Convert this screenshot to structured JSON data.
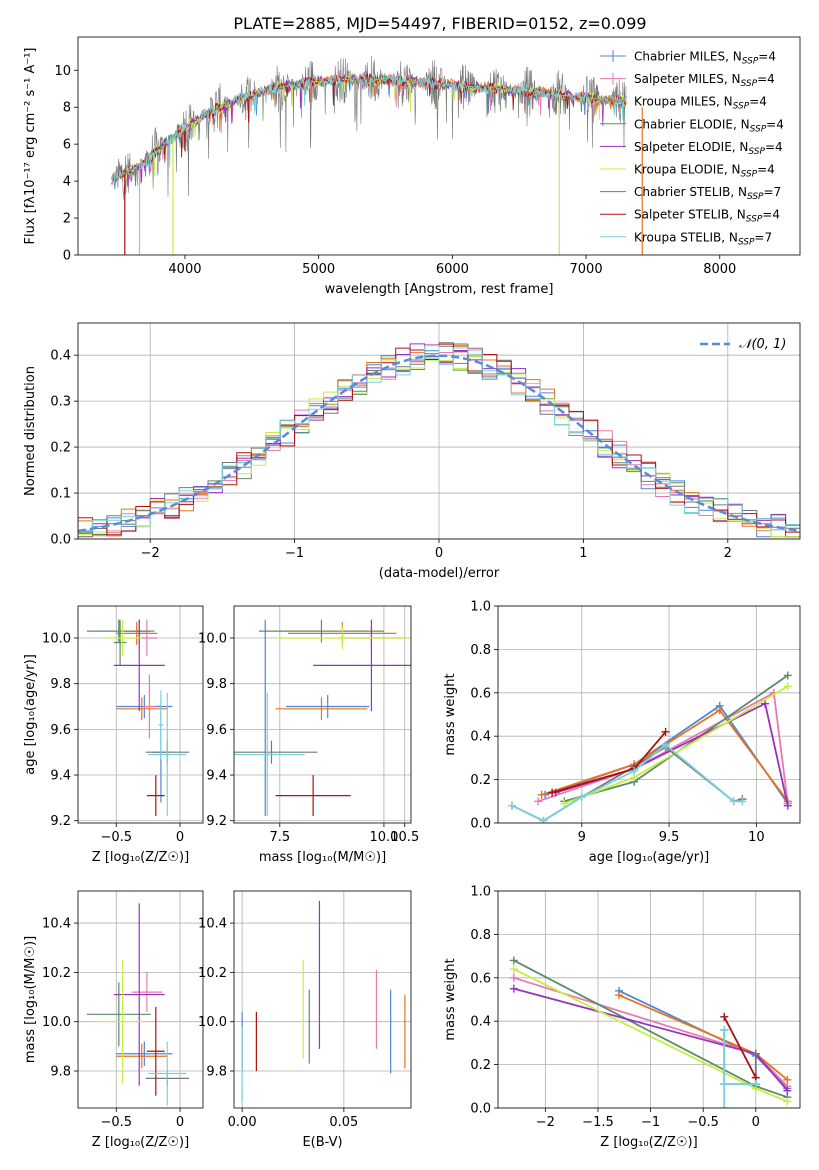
{
  "figure_title": "PLATE=2885, MJD=54497, FIBERID=0152, z=0.099",
  "colors": {
    "Chabrier MILES": "#4f86d9",
    "Salpeter MILES": "#e87ab0",
    "Kroupa MILES": "#e8731e",
    "Chabrier ELODIE": "#5b8b6a",
    "Salpeter ELODIE": "#9b2fc0",
    "Kroupa ELODIE": "#c7ee40",
    "Chabrier STELIB": "#777777",
    "Salpeter STELIB": "#b01010",
    "Kroupa STELIB": "#76d3de"
  },
  "chart_data": [
    {
      "type": "line",
      "name": "spectrum",
      "title": "PLATE=2885, MJD=54497, FIBERID=0152, z=0.099",
      "xlabel": "wavelength [Angstrom, rest frame]",
      "ylabel": "Flux [fλ10⁻¹⁷ erg cm⁻² s⁻¹ A⁻¹]",
      "xlim": [
        3200,
        8600
      ],
      "ylim": [
        0,
        11.8
      ],
      "xticks": [
        4000,
        5000,
        6000,
        7000,
        8000
      ],
      "yticks": [
        0,
        2,
        4,
        6,
        8,
        10
      ],
      "grid": false,
      "legend_position": "upper-right",
      "legend": [
        "Chabrier MILES, N_SSP=4",
        "Salpeter MILES, N_SSP=4",
        "Kroupa MILES, N_SSP=4",
        "Chabrier ELODIE, N_SSP=4",
        "Salpeter ELODIE, N_SSP=4",
        "Kroupa ELODIE, N_SSP=4",
        "Chabrier STELIB, N_SSP=7",
        "Salpeter STELIB, N_SSP=4",
        "Kroupa STELIB, N_SSP=7"
      ],
      "continuum": [
        [
          3450,
          4.1
        ],
        [
          3550,
          4.4
        ],
        [
          3700,
          5.0
        ],
        [
          3850,
          6.0
        ],
        [
          4000,
          6.9
        ],
        [
          4200,
          7.8
        ],
        [
          4400,
          8.4
        ],
        [
          4600,
          8.9
        ],
        [
          4800,
          9.2
        ],
        [
          5000,
          9.4
        ],
        [
          5200,
          9.5
        ],
        [
          5500,
          9.5
        ],
        [
          6000,
          9.2
        ],
        [
          6500,
          8.9
        ],
        [
          7000,
          8.5
        ],
        [
          7300,
          8.3
        ]
      ],
      "drops": [
        3550,
        3660,
        3910,
        6800,
        7420
      ]
    },
    {
      "type": "histogram",
      "name": "residuals",
      "xlabel": "(data-model)/error",
      "ylabel": "Normed distribution",
      "xlim": [
        -2.5,
        2.5
      ],
      "ylim": [
        0,
        0.47
      ],
      "xticks": [
        -2,
        -1,
        0,
        1,
        2
      ],
      "yticks": [
        0.0,
        0.1,
        0.2,
        0.3,
        0.4
      ],
      "grid": true,
      "legend_position": "upper-right",
      "legend": [
        "𝒩(0, 1)"
      ],
      "bin_width": 0.1,
      "reference_curve": "normal(0,1)"
    },
    {
      "type": "scatter",
      "name": "age-vs-Z",
      "xlabel": "Z [log₁₀(Z/Z☉)]",
      "ylabel": "age  [log₁₀(age/yr)]",
      "xlim": [
        -0.8,
        0.18
      ],
      "ylim": [
        9.19,
        10.14
      ],
      "xticks": [
        -0.5,
        0.0
      ],
      "yticks": [
        9.2,
        9.4,
        9.6,
        9.8,
        10.0
      ],
      "grid": true,
      "errorbars": [
        {
          "model": "Chabrier MILES",
          "x": -0.32,
          "xerr": 0.12,
          "y": 10.03,
          "yerr": 0.05
        },
        {
          "model": "Chabrier MILES",
          "x": -0.28,
          "xerr": 0.22,
          "y": 9.7,
          "yerr": 0.05
        },
        {
          "model": "Chabrier MILES",
          "x": -0.15,
          "xerr": 0.07,
          "y": 9.5,
          "yerr": 0.22
        },
        {
          "model": "Salpeter MILES",
          "x": -0.26,
          "xerr": 0.08,
          "y": 10.0,
          "yerr": 0.08
        },
        {
          "model": "Salpeter MILES",
          "x": -0.24,
          "xerr": 0.05,
          "y": 9.7,
          "yerr": 0.14
        },
        {
          "model": "Kroupa MILES",
          "x": -0.34,
          "xerr": 0.16,
          "y": 10.02,
          "yerr": 0.05
        },
        {
          "model": "Kroupa MILES",
          "x": -0.3,
          "xerr": 0.2,
          "y": 9.69,
          "yerr": 0.05
        },
        {
          "model": "Chabrier ELODIE",
          "x": -0.48,
          "xerr": 0.25,
          "y": 10.03,
          "yerr": 0.05
        },
        {
          "model": "Chabrier ELODIE",
          "x": -0.47,
          "xerr": 0.05,
          "y": 9.98,
          "yerr": 0.1
        },
        {
          "model": "Salpeter ELODIE",
          "x": -0.32,
          "xerr": 0.2,
          "y": 9.88,
          "yerr": 0.2
        },
        {
          "model": "Kroupa ELODIE",
          "x": -0.45,
          "xerr": 0.15,
          "y": 10.0,
          "yerr": 0.08
        },
        {
          "model": "Chabrier STELIB",
          "x": -0.1,
          "xerr": 0.17,
          "y": 9.5,
          "yerr": 0.05
        },
        {
          "model": "Salpeter STELIB",
          "x": -0.19,
          "xerr": 0.07,
          "y": 9.31,
          "yerr": 0.09
        },
        {
          "model": "Kroupa STELIB",
          "x": -0.1,
          "xerr": 0.15,
          "y": 9.49,
          "yerr": 0.27
        },
        {
          "model": "Kroupa STELIB",
          "x": -0.15,
          "xerr": 0.02,
          "y": 9.62,
          "yerr": 0.15
        }
      ]
    },
    {
      "type": "scatter",
      "name": "age-vs-mass",
      "xlabel": "mass [log₁₀(M/M☉)]",
      "ylabel": "",
      "xlim": [
        6.4,
        10.65
      ],
      "ylim": [
        9.19,
        10.14
      ],
      "xticks": [
        7.5,
        10.0,
        10.5
      ],
      "xticklabels": [
        "7.5",
        "10.0",
        "10.5"
      ],
      "yticks": [
        9.2,
        9.4,
        9.6,
        9.8,
        10.0
      ],
      "grid": true,
      "errorbars": [
        {
          "model": "Chabrier MILES",
          "x": 7.15,
          "xerr": 0.0,
          "y": 9.65,
          "yerr": 0.43
        },
        {
          "model": "Chabrier MILES",
          "x": 8.65,
          "xerr": 1.0,
          "y": 9.7,
          "yerr": 0.05
        },
        {
          "model": "Salpeter MILES",
          "x": 9.7,
          "xerr": 0.8,
          "y": 10.0,
          "yerr": 0.05
        },
        {
          "model": "Kroupa MILES",
          "x": 9.0,
          "xerr": 1.3,
          "y": 10.02,
          "yerr": 0.05
        },
        {
          "model": "Kroupa MILES",
          "x": 8.5,
          "xerr": 1.1,
          "y": 9.69,
          "yerr": 0.05
        },
        {
          "model": "Chabrier ELODIE",
          "x": 8.5,
          "xerr": 1.5,
          "y": 10.03,
          "yerr": 0.05
        },
        {
          "model": "Salpeter ELODIE",
          "x": 9.7,
          "xerr": 1.4,
          "y": 9.88,
          "yerr": 0.2
        },
        {
          "model": "Kroupa ELODIE",
          "x": 9.0,
          "xerr": 1.6,
          "y": 10.0,
          "yerr": 0.05
        },
        {
          "model": "Chabrier STELIB",
          "x": 7.3,
          "xerr": 1.1,
          "y": 9.5,
          "yerr": 0.05
        },
        {
          "model": "Salpeter STELIB",
          "x": 8.3,
          "xerr": 0.9,
          "y": 9.31,
          "yerr": 0.09
        },
        {
          "model": "Kroupa STELIB",
          "x": 7.2,
          "xerr": 0.9,
          "y": 9.49,
          "yerr": 0.27
        }
      ]
    },
    {
      "type": "line",
      "name": "mass-weight-vs-age",
      "xlabel": "age  [log₁₀(age/yr)]",
      "ylabel": "mass weight",
      "xlim": [
        8.52,
        10.25
      ],
      "ylim": [
        0,
        1.0
      ],
      "xticks": [
        9.0,
        9.5,
        10.0
      ],
      "yticks": [
        0.0,
        0.2,
        0.4,
        0.6,
        0.8,
        1.0
      ],
      "grid": true,
      "series": [
        {
          "model": "Chabrier MILES",
          "points": [
            [
              8.79,
              0.13
            ],
            [
              9.3,
              0.27
            ],
            [
              9.79,
              0.54
            ],
            [
              10.18,
              0.09
            ]
          ]
        },
        {
          "model": "Salpeter MILES",
          "points": [
            [
              8.75,
              0.1
            ],
            [
              9.3,
              0.25
            ],
            [
              10.1,
              0.6
            ],
            [
              10.18,
              0.09
            ]
          ]
        },
        {
          "model": "Kroupa MILES",
          "points": [
            [
              8.77,
              0.13
            ],
            [
              9.3,
              0.27
            ],
            [
              9.79,
              0.52
            ],
            [
              10.18,
              0.1
            ]
          ]
        },
        {
          "model": "Chabrier ELODIE",
          "points": [
            [
              8.9,
              0.1
            ],
            [
              9.3,
              0.19
            ],
            [
              10.18,
              0.68
            ]
          ]
        },
        {
          "model": "Salpeter ELODIE",
          "points": [
            [
              8.85,
              0.14
            ],
            [
              9.3,
              0.25
            ],
            [
              10.05,
              0.55
            ],
            [
              10.18,
              0.08
            ]
          ]
        },
        {
          "model": "Kroupa ELODIE",
          "points": [
            [
              8.9,
              0.09
            ],
            [
              9.3,
              0.21
            ],
            [
              10.18,
              0.63
            ]
          ]
        },
        {
          "model": "Chabrier STELIB",
          "points": [
            [
              8.6,
              0.08
            ],
            [
              8.78,
              0.01
            ],
            [
              9.0,
              0.12
            ],
            [
              9.3,
              0.26
            ],
            [
              9.48,
              0.35
            ],
            [
              9.87,
              0.1
            ],
            [
              9.92,
              0.11
            ]
          ]
        },
        {
          "model": "Salpeter STELIB",
          "points": [
            [
              8.83,
              0.14
            ],
            [
              9.3,
              0.25
            ],
            [
              9.48,
              0.42
            ]
          ]
        },
        {
          "model": "Kroupa STELIB",
          "points": [
            [
              8.6,
              0.08
            ],
            [
              8.78,
              0.01
            ],
            [
              9.0,
              0.12
            ],
            [
              9.3,
              0.24
            ],
            [
              9.48,
              0.36
            ],
            [
              9.87,
              0.1
            ],
            [
              9.92,
              0.1
            ]
          ]
        }
      ]
    },
    {
      "type": "scatter",
      "name": "mass-vs-Z",
      "xlabel": "Z [log₁₀(Z/Z☉)]",
      "ylabel": "mass [log₁₀(M/M☉)]",
      "xlim": [
        -0.8,
        0.18
      ],
      "ylim": [
        9.65,
        10.53
      ],
      "xticks": [
        -0.5,
        0.0
      ],
      "yticks": [
        9.8,
        10.0,
        10.2,
        10.4
      ],
      "grid": true,
      "errorbars": [
        {
          "model": "Chabrier MILES",
          "x": -0.28,
          "xerr": 0.22,
          "y": 9.87,
          "yerr": 0.05
        },
        {
          "model": "Salpeter MILES",
          "x": -0.26,
          "xerr": 0.12,
          "y": 10.12,
          "yerr": 0.08
        },
        {
          "model": "Kroupa MILES",
          "x": -0.3,
          "xerr": 0.2,
          "y": 9.86,
          "yerr": 0.05
        },
        {
          "model": "Chabrier ELODIE",
          "x": -0.48,
          "xerr": 0.25,
          "y": 10.03,
          "yerr": 0.13
        },
        {
          "model": "Salpeter ELODIE",
          "x": -0.32,
          "xerr": 0.2,
          "y": 10.11,
          "yerr": 0.37
        },
        {
          "model": "Kroupa ELODIE",
          "x": -0.45,
          "xerr": 0.2,
          "y": 10.0,
          "yerr": 0.25
        },
        {
          "model": "Chabrier STELIB",
          "x": -0.1,
          "xerr": 0.17,
          "y": 9.77,
          "yerr": 0.03
        },
        {
          "model": "Salpeter STELIB",
          "x": -0.19,
          "xerr": 0.07,
          "y": 9.88,
          "yerr": 0.18
        },
        {
          "model": "Kroupa STELIB",
          "x": -0.1,
          "xerr": 0.15,
          "y": 9.79,
          "yerr": 0.13
        }
      ]
    },
    {
      "type": "scatter",
      "name": "mass-vs-EBV",
      "xlabel": "E(B-V)",
      "ylabel": "",
      "xlim": [
        -0.004,
        0.083
      ],
      "ylim": [
        9.65,
        10.53
      ],
      "xticks": [
        0.0,
        0.05
      ],
      "xticklabels": [
        "0.00",
        "0.05"
      ],
      "yticks": [
        9.8,
        10.0,
        10.2,
        10.4
      ],
      "grid": true,
      "errorbars": [
        {
          "model": "Chabrier MILES",
          "x": 0.0,
          "y": 9.92,
          "yerr": 0.12
        },
        {
          "model": "Kroupa STELIB",
          "x": 0.0,
          "y": 9.83,
          "yerr": 0.15
        },
        {
          "model": "Salpeter STELIB",
          "x": 0.007,
          "y": 9.92,
          "yerr": 0.12
        },
        {
          "model": "Kroupa ELODIE",
          "x": 0.03,
          "y": 10.05,
          "yerr": 0.2
        },
        {
          "model": "Chabrier ELODIE",
          "x": 0.033,
          "y": 9.98,
          "yerr": 0.15
        },
        {
          "model": "Salpeter ELODIE",
          "x": 0.038,
          "y": 10.19,
          "yerr": 0.3
        },
        {
          "model": "Salpeter MILES",
          "x": 0.066,
          "y": 10.05,
          "yerr": 0.16
        },
        {
          "model": "Chabrier MILES",
          "x": 0.073,
          "y": 9.96,
          "yerr": 0.17
        },
        {
          "model": "Kroupa MILES",
          "x": 0.08,
          "y": 9.96,
          "yerr": 0.15
        }
      ]
    },
    {
      "type": "line",
      "name": "mass-weight-vs-Z",
      "xlabel": "Z [log₁₀(Z/Z☉)]",
      "ylabel": "mass weight",
      "xlim": [
        -2.45,
        0.42
      ],
      "ylim": [
        0,
        1.0
      ],
      "xticks": [
        -2.0,
        -1.5,
        -1.0,
        -0.5,
        0.0
      ],
      "yticks": [
        0.0,
        0.2,
        0.4,
        0.6,
        0.8,
        1.0
      ],
      "grid": true,
      "series": [
        {
          "model": "Chabrier MILES",
          "points": [
            [
              -1.3,
              0.54
            ],
            [
              0.0,
              0.24
            ],
            [
              0.3,
              0.09
            ]
          ]
        },
        {
          "model": "Salpeter MILES",
          "points": [
            [
              -2.3,
              0.6
            ],
            [
              0.0,
              0.25
            ],
            [
              0.3,
              0.1
            ]
          ]
        },
        {
          "model": "Kroupa MILES",
          "points": [
            [
              -1.3,
              0.52
            ],
            [
              0.0,
              0.25
            ],
            [
              0.3,
              0.13
            ]
          ]
        },
        {
          "model": "Chabrier ELODIE",
          "points": [
            [
              -2.3,
              0.68
            ],
            [
              0.0,
              0.1
            ],
            [
              0.3,
              0.05
            ]
          ]
        },
        {
          "model": "Salpeter ELODIE",
          "points": [
            [
              -2.3,
              0.55
            ],
            [
              0.0,
              0.25
            ],
            [
              0.3,
              0.08
            ]
          ]
        },
        {
          "model": "Kroupa ELODIE",
          "points": [
            [
              -2.3,
              0.64
            ],
            [
              0.0,
              0.09
            ],
            [
              0.3,
              0.03
            ]
          ]
        },
        {
          "model": "Chabrier STELIB",
          "points": [
            [
              -0.3,
              0.36
            ],
            [
              -0.3,
              0.11
            ],
            [
              0.0,
              0.11
            ],
            [
              0.0,
              0.25
            ]
          ]
        },
        {
          "model": "Salpeter STELIB",
          "points": [
            [
              -0.3,
              0.42
            ],
            [
              0.0,
              0.14
            ]
          ]
        },
        {
          "model": "Kroupa STELIB",
          "points": [
            [
              -0.3,
              0.36
            ],
            [
              -0.3,
              0.0
            ],
            [
              -0.3,
              0.11
            ],
            [
              0.0,
              0.11
            ]
          ]
        }
      ]
    }
  ]
}
